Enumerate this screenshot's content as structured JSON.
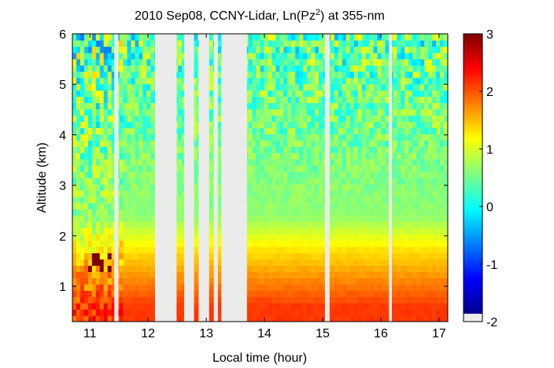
{
  "chart_data": {
    "type": "heatmap",
    "title": {
      "prefix": "2010 Sep08, CCNY-Lidar, Ln(Pz",
      "superscript": "2",
      "suffix": ") at 355-nm"
    },
    "xlabel": "Local time (hour)",
    "ylabel": "Altitude (km)",
    "xlim": [
      10.7,
      17.15
    ],
    "ylim": [
      0.3,
      6.0
    ],
    "x_ticks": [
      11,
      12,
      13,
      14,
      15,
      16,
      17
    ],
    "x_tick_labels": [
      "11",
      "12",
      "13",
      "14",
      "15",
      "16",
      "17"
    ],
    "y_ticks": [
      1,
      2,
      3,
      4,
      5,
      6
    ],
    "y_tick_labels": [
      "1",
      "2",
      "3",
      "4",
      "5",
      "6"
    ],
    "colorbar": {
      "range": [
        -2,
        3
      ],
      "ticks": [
        -2,
        -1,
        0,
        1,
        2,
        3
      ],
      "tick_labels": [
        "-2",
        "-1",
        "0",
        "1",
        "2",
        "3"
      ],
      "colormap": "jet",
      "missing_color": "#ebebeb"
    },
    "no_data_intervals": [
      [
        11.42,
        11.49
      ],
      [
        12.12,
        12.49
      ],
      [
        12.62,
        12.79
      ],
      [
        12.87,
        13.05
      ],
      [
        13.13,
        13.2
      ],
      [
        13.26,
        13.7
      ],
      [
        15.04,
        15.12
      ],
      [
        16.14,
        16.19
      ]
    ],
    "aerosol_feature": {
      "x_range": [
        11.0,
        11.38
      ],
      "alt_range": [
        1.3,
        1.7
      ],
      "value": 3
    }
  }
}
